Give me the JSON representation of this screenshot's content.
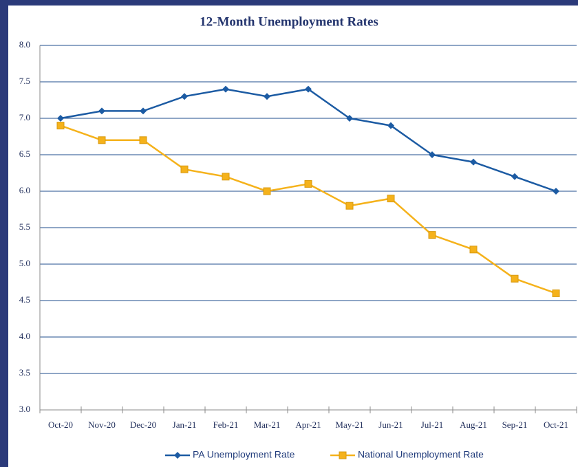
{
  "chart_data": {
    "type": "line",
    "title": "12-Month Unemployment Rates",
    "categories": [
      "Oct-20",
      "Nov-20",
      "Dec-20",
      "Jan-21",
      "Feb-21",
      "Mar-21",
      "Apr-21",
      "May-21",
      "Jun-21",
      "Jul-21",
      "Aug-21",
      "Sep-21",
      "Oct-21"
    ],
    "series": [
      {
        "name": "PA Unemployment Rate",
        "color": "#1c5ba3",
        "marker": "diamond",
        "values": [
          7.0,
          7.1,
          7.1,
          7.3,
          7.4,
          7.3,
          7.4,
          7.0,
          6.9,
          6.5,
          6.4,
          6.2,
          6.0
        ]
      },
      {
        "name": "National Unemployment Rate",
        "color": "#f5b21b",
        "marker": "square",
        "values": [
          6.9,
          6.7,
          6.7,
          6.3,
          6.2,
          6.0,
          6.1,
          5.8,
          5.9,
          5.4,
          5.2,
          4.8,
          4.6
        ]
      }
    ],
    "ylim": [
      3.0,
      8.0
    ],
    "yticks": [
      {
        "value": 3.0,
        "label": "3.0"
      },
      {
        "value": 3.5,
        "label": "3.5"
      },
      {
        "value": 4.0,
        "label": "4.0"
      },
      {
        "value": 4.5,
        "label": "4.5"
      },
      {
        "value": 5.0,
        "label": "5.0"
      },
      {
        "value": 5.5,
        "label": "5.5"
      },
      {
        "value": 6.0,
        "label": "6.0"
      },
      {
        "value": 6.5,
        "label": "6.5"
      },
      {
        "value": 7.0,
        "label": "7.0"
      },
      {
        "value": 7.5,
        "label": "7.5"
      },
      {
        "value": 8.0,
        "label": "8.0"
      }
    ],
    "grid": true,
    "legend": "bottom"
  }
}
